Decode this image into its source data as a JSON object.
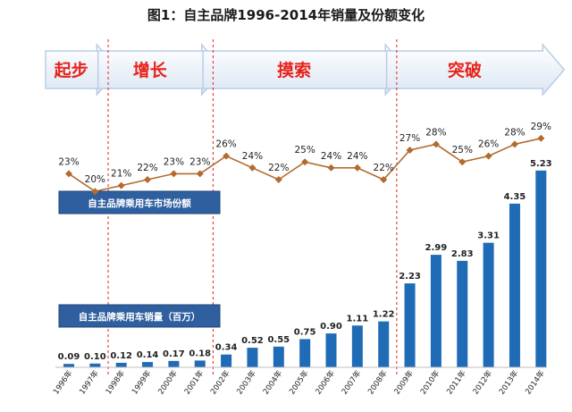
{
  "chart_data": {
    "type": "bar+line",
    "title": "图1：自主品牌1996-2014年销量及份额变化",
    "categories": [
      "1996年",
      "1997年",
      "1998年",
      "1999年",
      "2000年",
      "2001年",
      "2002年",
      "2003年",
      "2004年",
      "2005年",
      "2006年",
      "2007年",
      "2008年",
      "2009年",
      "2010年",
      "2011年",
      "2012年",
      "2013年",
      "2014年"
    ],
    "series": [
      {
        "name": "自主品牌乘用车销量（百万）",
        "type": "bar",
        "color": "#1f6bb5",
        "values": [
          0.09,
          0.1,
          0.12,
          0.14,
          0.17,
          0.18,
          0.34,
          0.52,
          0.55,
          0.75,
          0.9,
          1.11,
          1.22,
          2.23,
          2.99,
          2.83,
          3.31,
          4.35,
          5.23
        ],
        "labels": [
          "0.09",
          "0.10",
          "0.12",
          "0.14",
          "0.17",
          "0.18",
          "0.34",
          "0.52",
          "0.55",
          "0.75",
          "0.90",
          "1.11",
          "1.22",
          "2.23",
          "2.99",
          "2.83",
          "3.31",
          "4.35",
          "5.23"
        ]
      },
      {
        "name": "自主品牌乘用车市场份额",
        "type": "line",
        "color": "#b36a2e",
        "values": [
          23,
          20,
          21,
          22,
          23,
          23,
          26,
          24,
          22,
          25,
          24,
          24,
          22,
          27,
          28,
          25,
          26,
          28,
          29
        ],
        "labels": [
          "23%",
          "20%",
          "21%",
          "22%",
          "23%",
          "23%",
          "26%",
          "24%",
          "22%",
          "25%",
          "24%",
          "24%",
          "22%",
          "27%",
          "28%",
          "25%",
          "26%",
          "28%",
          "29%"
        ]
      }
    ],
    "phases": [
      {
        "label": "起步",
        "from": 0,
        "to": 1
      },
      {
        "label": "增长",
        "from": 2,
        "to": 5
      },
      {
        "label": "摸索",
        "from": 6,
        "to": 12
      },
      {
        "label": "突破",
        "from": 13,
        "to": 18
      }
    ],
    "colors": {
      "phase_text": "#e8221b",
      "divider": "#e8221b",
      "legend_box": "#2f5f9e"
    }
  }
}
